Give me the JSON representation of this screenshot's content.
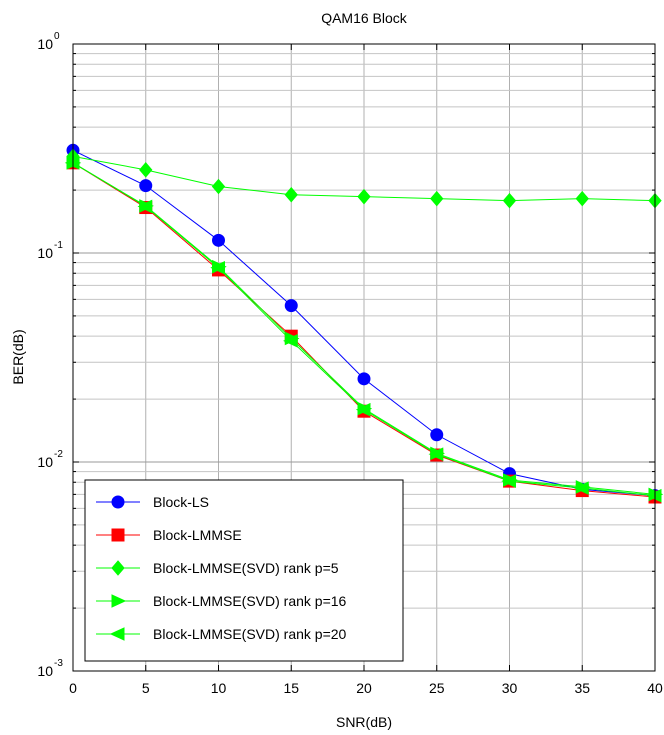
{
  "chart_data": {
    "type": "line",
    "title": "QAM16 Block",
    "xlabel": "SNR(dB)",
    "ylabel": "BER(dB)",
    "yscale": "log",
    "xlim": [
      0,
      40
    ],
    "ylim": [
      0.001,
      1
    ],
    "grid": true,
    "legend_position": "bottom-left",
    "x_ticks": [
      "0",
      "5",
      "10",
      "15",
      "20",
      "25",
      "30",
      "35",
      "40"
    ],
    "y_ticks": [
      {
        "base": "10",
        "exp": "0"
      },
      {
        "base": "10",
        "exp": "-1"
      },
      {
        "base": "10",
        "exp": "-2"
      },
      {
        "base": "10",
        "exp": "-3"
      }
    ],
    "x": [
      0,
      5,
      10,
      15,
      20,
      25,
      30,
      35,
      40
    ],
    "series": [
      {
        "name": "Block-LS",
        "color": "#0000ff",
        "marker": "circle",
        "values": [
          0.31,
          0.21,
          0.115,
          0.056,
          0.025,
          0.0135,
          0.0088,
          0.0074,
          0.0069
        ]
      },
      {
        "name": "Block-LMMSE",
        "color": "#ff0000",
        "marker": "square",
        "values": [
          0.27,
          0.165,
          0.083,
          0.04,
          0.0175,
          0.0108,
          0.0081,
          0.0073,
          0.0068
        ]
      },
      {
        "name": "Block-LMMSE(SVD) rank p=5",
        "color": "#00ff00",
        "marker": "diamond",
        "values": [
          0.29,
          0.25,
          0.208,
          0.19,
          0.186,
          0.182,
          0.178,
          0.182,
          0.178
        ]
      },
      {
        "name": "Block-LMMSE(SVD) rank p=16",
        "color": "#00ff00",
        "marker": "triangle-right",
        "values": [
          0.27,
          0.168,
          0.086,
          0.039,
          0.018,
          0.011,
          0.0082,
          0.0076,
          0.007
        ]
      },
      {
        "name": "Block-LMMSE(SVD) rank p=20",
        "color": "#00ff00",
        "marker": "triangle-left",
        "values": [
          0.27,
          0.167,
          0.085,
          0.038,
          0.0178,
          0.0109,
          0.0081,
          0.0075,
          0.0069
        ]
      }
    ]
  }
}
